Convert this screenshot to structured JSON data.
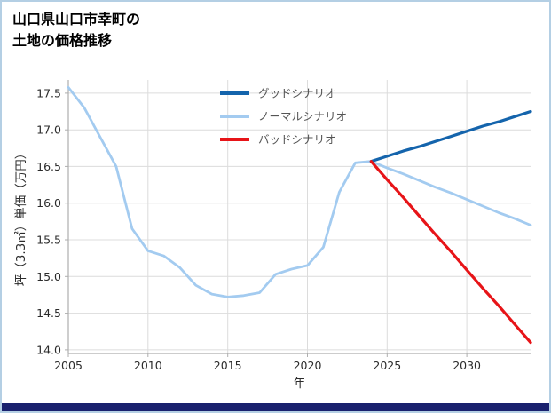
{
  "title": {
    "line1": "山口県山口市幸町の",
    "line2": "土地の価格推移"
  },
  "colors": {
    "page_border": "#b4cfe4",
    "footer_bar": "#19216e",
    "grid": "#dcdcdc",
    "axis": "#aeaeae",
    "tick_text": "#2b2b2b",
    "legend_text": "#555555",
    "good": "#1464ac",
    "normal": "#a3cbf0",
    "bad": "#e71418"
  },
  "chart_data": {
    "type": "line",
    "title": "山口県山口市幸町の土地の価格推移",
    "xlabel": "年",
    "ylabel": "坪（3.3㎡）単価（万円）",
    "xlim": [
      2005,
      2034
    ],
    "ylim": [
      14.0,
      17.5
    ],
    "xticks": [
      2005,
      2010,
      2015,
      2020,
      2025,
      2030
    ],
    "yticks": [
      14.0,
      14.5,
      15.0,
      15.5,
      16.0,
      16.5,
      17.0,
      17.5
    ],
    "grid": true,
    "legend_position": "top-center-inside",
    "series": [
      {
        "id": "good-scenario",
        "name": "グッドシナリオ",
        "color": "#1464ac",
        "width": 3.2,
        "z": 2,
        "x": [
          2024,
          2025,
          2026,
          2027,
          2028,
          2029,
          2030,
          2031,
          2032,
          2033,
          2034
        ],
        "y": [
          16.57,
          16.64,
          16.71,
          16.77,
          16.84,
          16.91,
          16.98,
          17.05,
          17.11,
          17.18,
          17.25
        ]
      },
      {
        "id": "normal-scenario",
        "name": "ノーマルシナリオ",
        "color": "#a3cbf0",
        "width": 2.8,
        "z": 1,
        "x": [
          2005,
          2006,
          2007,
          2008,
          2009,
          2010,
          2011,
          2012,
          2013,
          2014,
          2015,
          2016,
          2017,
          2018,
          2019,
          2020,
          2021,
          2022,
          2023,
          2024,
          2025,
          2026,
          2027,
          2028,
          2029,
          2030,
          2031,
          2032,
          2033,
          2034
        ],
        "y": [
          17.58,
          17.3,
          16.9,
          16.5,
          15.65,
          15.35,
          15.28,
          15.12,
          14.88,
          14.76,
          14.72,
          14.74,
          14.78,
          15.03,
          15.1,
          15.15,
          15.4,
          16.15,
          16.55,
          16.57,
          16.48,
          16.4,
          16.31,
          16.22,
          16.14,
          16.05,
          15.96,
          15.87,
          15.79,
          15.7
        ]
      },
      {
        "id": "bad-scenario",
        "name": "バッドシナリオ",
        "color": "#e71418",
        "width": 3.2,
        "z": 3,
        "x": [
          2024,
          2025,
          2026,
          2027,
          2028,
          2029,
          2030,
          2031,
          2032,
          2033,
          2034
        ],
        "y": [
          16.57,
          16.32,
          16.08,
          15.83,
          15.58,
          15.34,
          15.09,
          14.84,
          14.6,
          14.35,
          14.1
        ]
      }
    ]
  }
}
